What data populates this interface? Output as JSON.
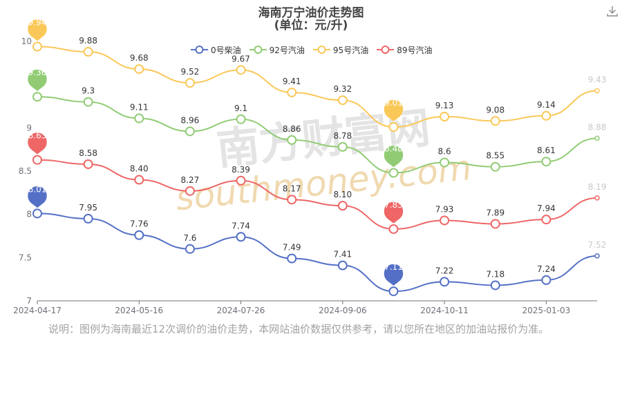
{
  "header": {
    "title": "海南万宁油价走势图",
    "subtitle": "(单位：元/升)"
  },
  "toolbar": {
    "download_icon": "download-icon"
  },
  "note": "说明：图例为海南最近12次调价的油价走势，本网站油价数据仅供参考，请以您所在地区的加油站报价为准。",
  "watermark": {
    "cn": "南方财富网",
    "en": "southmoney.com"
  },
  "colors": {
    "0号柴油": "#5470c6",
    "92号汽油": "#91cc75",
    "95号汽油": "#fac858",
    "89号汽油": "#ee6666",
    "axis": "#6e7079",
    "label": "#333333"
  },
  "chart_data": {
    "type": "line",
    "title": "海南万宁油价走势图",
    "subtitle": "(单位：元/升)",
    "x_tick_labels": [
      "2024-04-17",
      "2024-05-16",
      "2024-07-26",
      "2024-09-06",
      "2024-10-11",
      "2025-01-03"
    ],
    "x_tick_index": [
      0,
      2,
      4,
      6,
      8,
      10
    ],
    "ylim": [
      7,
      10
    ],
    "y_ticks": [
      7,
      7.5,
      8,
      8.5,
      9,
      10
    ],
    "legend_position": "top",
    "series": [
      {
        "name": "0号柴油",
        "values": [
          8.01,
          7.95,
          7.76,
          7.6,
          7.74,
          7.49,
          7.41,
          7.11,
          7.22,
          7.18,
          7.24,
          7.52
        ],
        "labels": [
          "8.01",
          "7.95",
          "7.76",
          "7.6",
          "7.74",
          "7.49",
          "7.41",
          "7.11",
          "7.22",
          "7.18",
          "7.24",
          "7.52"
        ],
        "max_index": 0,
        "min_index": 7
      },
      {
        "name": "92号汽油",
        "values": [
          9.36,
          9.3,
          9.11,
          8.96,
          9.1,
          8.86,
          8.78,
          8.48,
          8.6,
          8.55,
          8.61,
          8.88
        ],
        "labels": [
          "9.36",
          "9.3",
          "9.11",
          "8.96",
          "9.1",
          "8.86",
          "8.78",
          "8.48",
          "8.6",
          "8.55",
          "8.61",
          "8.88"
        ],
        "max_index": 0,
        "min_index": 7
      },
      {
        "name": "95号汽油",
        "values": [
          9.94,
          9.88,
          9.68,
          9.52,
          9.67,
          9.41,
          9.32,
          9.01,
          9.13,
          9.08,
          9.14,
          9.43
        ],
        "labels": [
          "9.94",
          "9.88",
          "9.68",
          "9.52",
          "9.67",
          "9.41",
          "9.32",
          "9.01",
          "9.13",
          "9.08",
          "9.14",
          "9.43"
        ],
        "max_index": 0,
        "min_index": 7
      },
      {
        "name": "89号汽油",
        "values": [
          8.63,
          8.58,
          8.4,
          8.27,
          8.39,
          8.17,
          8.1,
          7.83,
          7.93,
          7.89,
          7.94,
          8.19
        ],
        "labels": [
          "8.63",
          "8.58",
          "8.40",
          "8.27",
          "8.39",
          "8.17",
          "8.10",
          "7.83",
          "7.93",
          "7.89",
          "7.94",
          "8.19"
        ],
        "max_index": 0,
        "min_index": 7
      }
    ]
  }
}
